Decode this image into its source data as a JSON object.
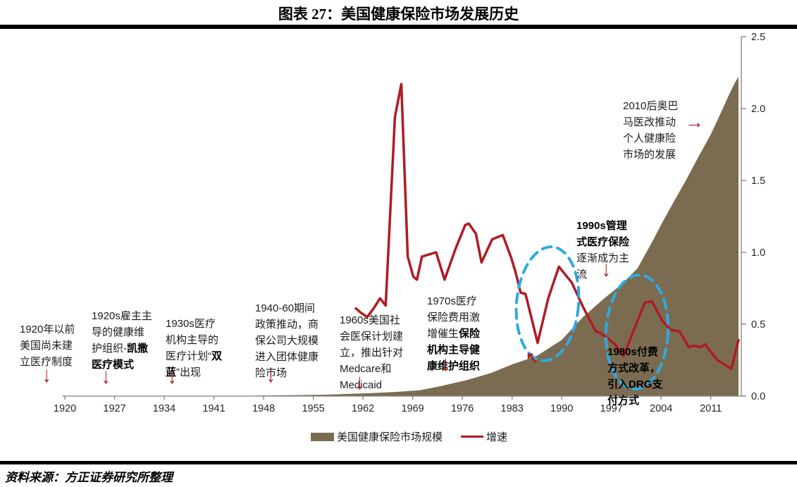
{
  "title": "图表 27：美国健康保险市场发展历史",
  "source": "资料来源：方正证券研究所整理",
  "legend": {
    "area_label": "美国健康保险市场规模",
    "line_label": "增速"
  },
  "colors": {
    "area": "#7B6C51",
    "line": "#AF1B24",
    "highlight_ellipse": "#2FA9E0",
    "axis": "#808080",
    "tick_label": "#262626"
  },
  "annotations": [
    {
      "pre": "1920年以前美国尚未建立医疗制度",
      "bold": "",
      "post": "",
      "arrow": "↓"
    },
    {
      "pre": "1920s雇主主导的健康维护组织-",
      "bold": "凯撒医疗模式",
      "post": "",
      "arrow": "↓"
    },
    {
      "pre": "1930s医疗机构主导的医疗计划“",
      "bold": "双蓝",
      "post": "”出现",
      "arrow": "↓"
    },
    {
      "pre": "1940-60期间政策推动，商保公司大规模进入团体健康险市场",
      "bold": "",
      "post": "",
      "arrow": "↓"
    },
    {
      "pre": "1960s美国社会医保计划建立，推出针对Medcare和Medicaid",
      "bold": "",
      "post": "",
      "arrow": "↓"
    },
    {
      "pre": "1970s医疗保险费用激增催生",
      "bold": "保险机构主导健康维护组织",
      "post": "",
      "arrow": "↓"
    },
    {
      "pre": "",
      "bold": "1980s付费方式改革，引入DRG支付方式",
      "post": "",
      "arrow": "↖"
    },
    {
      "pre": "",
      "bold": "1990s管理式医疗保险",
      "post": "逐渐成为主流",
      "arrow": "↓"
    },
    {
      "pre": "2010后奥巴马医改推动个人健康险市场的发展",
      "bold": "",
      "post": "",
      "arrow": "→"
    }
  ],
  "chart_data": {
    "type": "combo",
    "title": "图表 27：美国健康保险市场发展历史",
    "x_axis": {
      "ticks": [
        1920,
        1927,
        1934,
        1941,
        1948,
        1955,
        1962,
        1969,
        1976,
        1983,
        1990,
        1997,
        2004,
        2011
      ],
      "range": [
        1919.6,
        2015.3
      ],
      "grid": false
    },
    "y_axis": {
      "side": "right",
      "ticks": [
        "0.0",
        "0.5",
        "1.0",
        "1.5",
        "2.0",
        "2.5"
      ],
      "range": [
        0,
        2.5
      ]
    },
    "legend_position": "bottom",
    "series": [
      {
        "name": "美国健康保险市场规模",
        "type": "area",
        "color": "#7B6C51",
        "points": [
          [
            1919.6,
            0
          ],
          [
            1945,
            0.002
          ],
          [
            1952,
            0.006
          ],
          [
            1957,
            0.01
          ],
          [
            1960,
            0.015
          ],
          [
            1963,
            0.02
          ],
          [
            1967,
            0.03
          ],
          [
            1970,
            0.04
          ],
          [
            1973,
            0.07
          ],
          [
            1976.5,
            0.11
          ],
          [
            1980,
            0.16
          ],
          [
            1983,
            0.22
          ],
          [
            1986.5,
            0.28
          ],
          [
            1990,
            0.39
          ],
          [
            1993,
            0.55
          ],
          [
            1996,
            0.68
          ],
          [
            1998.5,
            0.78
          ],
          [
            2000.7,
            0.89
          ],
          [
            2002.7,
            1.07
          ],
          [
            2004.3,
            1.22
          ],
          [
            2006,
            1.37
          ],
          [
            2007.6,
            1.51
          ],
          [
            2009.2,
            1.66
          ],
          [
            2011,
            1.82
          ],
          [
            2012.6,
            1.99
          ],
          [
            2013.6,
            2.1
          ],
          [
            2014.4,
            2.18
          ],
          [
            2014.9,
            2.22
          ]
        ]
      },
      {
        "name": "增速",
        "type": "line",
        "color": "#AF1B24",
        "points": [
          [
            1961,
            0.61
          ],
          [
            1961.7,
            0.58
          ],
          [
            1962.6,
            0.55
          ],
          [
            1963.5,
            0.61
          ],
          [
            1964.4,
            0.68
          ],
          [
            1965.2,
            0.63
          ],
          [
            1966.5,
            1.94
          ],
          [
            1967.4,
            2.17
          ],
          [
            1968.3,
            0.97
          ],
          [
            1969.1,
            0.83
          ],
          [
            1969.6,
            0.81
          ],
          [
            1970.3,
            0.97
          ],
          [
            1972.3,
            1.0
          ],
          [
            1973.5,
            0.81
          ],
          [
            1975,
            1.02
          ],
          [
            1976.4,
            1.19
          ],
          [
            1976.9,
            1.2
          ],
          [
            1977.9,
            1.13
          ],
          [
            1978.7,
            0.93
          ],
          [
            1980.2,
            1.09
          ],
          [
            1981.7,
            1.12
          ],
          [
            1982.9,
            0.96
          ],
          [
            1983.5,
            0.86
          ],
          [
            1984.2,
            0.72
          ],
          [
            1984.9,
            0.71
          ],
          [
            1986.6,
            0.37
          ],
          [
            1988.1,
            0.68
          ],
          [
            1989.6,
            0.9
          ],
          [
            1991.4,
            0.79
          ],
          [
            1993.1,
            0.61
          ],
          [
            1994.8,
            0.45
          ],
          [
            1995.4,
            0.44
          ],
          [
            1996.5,
            0.4
          ],
          [
            1997.5,
            0.36
          ],
          [
            1998.7,
            0.28
          ],
          [
            2001.7,
            0.65
          ],
          [
            2002.7,
            0.66
          ],
          [
            2004.2,
            0.52
          ],
          [
            2005.4,
            0.46
          ],
          [
            2006.6,
            0.45
          ],
          [
            2007.9,
            0.34
          ],
          [
            2008.6,
            0.35
          ],
          [
            2009.6,
            0.34
          ],
          [
            2010.2,
            0.36
          ],
          [
            2011.9,
            0.25
          ],
          [
            2013.9,
            0.19
          ],
          [
            2014.9,
            0.39
          ]
        ]
      }
    ]
  }
}
